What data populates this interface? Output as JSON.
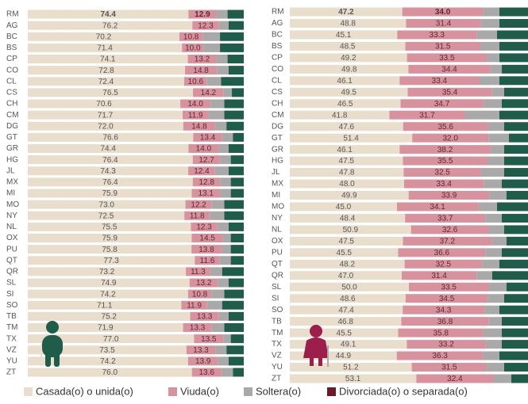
{
  "chart_data": [
    {
      "type": "bar",
      "orientation": "horizontal",
      "stacked": true,
      "xlim": [
        0,
        100
      ],
      "categories": [
        "RM",
        "AG",
        "BC",
        "BS",
        "CP",
        "CO",
        "CL",
        "CS",
        "CH",
        "CM",
        "DG",
        "GT",
        "GR",
        "HG",
        "JL",
        "MX",
        "MI",
        "MO",
        "NY",
        "NL",
        "OX",
        "PU",
        "QT",
        "QR",
        "SL",
        "SI",
        "SO",
        "TB",
        "TM",
        "TX",
        "VZ",
        "YU",
        "ZT"
      ],
      "series": [
        {
          "name": "Casada(o) o unida(o)",
          "color": "#e9ddcc",
          "values": [
            74.4,
            76.2,
            70.2,
            71.4,
            74.1,
            72.8,
            72.4,
            76.5,
            70.6,
            71.7,
            72.0,
            76.6,
            74.4,
            76.4,
            74.3,
            76.4,
            75.9,
            73.0,
            72.5,
            75.5,
            75.9,
            75.8,
            77.3,
            73.2,
            74.9,
            74.2,
            71.1,
            75.2,
            71.9,
            77.0,
            73.5,
            74.2,
            76.0
          ],
          "value_labels": [
            "74.4",
            "76.2",
            "70.2",
            "71.4",
            "74.1",
            "72.8",
            "72.4",
            "76.5",
            "70.6",
            "71.7",
            "72.0",
            "76.6",
            "74.4",
            "76.4",
            "74.3",
            "76.4",
            "75.9",
            "73.0",
            "72.5",
            "75.5",
            "75.9",
            "75.8",
            "77.3",
            "73.2",
            "74.9",
            "74.2",
            "71.1",
            "75.2",
            "71.9",
            "77.0",
            "73.5",
            "74.2",
            "76.0"
          ]
        },
        {
          "name": "Viuda(o)",
          "color": "#d8929e",
          "values": [
            12.9,
            12.3,
            10.8,
            10.0,
            13.2,
            14.8,
            10.6,
            14.2,
            14.0,
            11.9,
            14.8,
            13.4,
            14.0,
            12.7,
            12.4,
            12.8,
            13.1,
            12.2,
            11.8,
            12.3,
            14.5,
            13.8,
            11.6,
            11.3,
            13.2,
            10.8,
            11.9,
            13.3,
            13.3,
            13.5,
            13.3,
            13.9,
            13.6
          ],
          "value_labels": [
            "12.9",
            "12.3",
            "10.8",
            "10.0",
            "13.2",
            "14.8",
            "10.6",
            "14.2",
            "14.0",
            "11.9",
            "14.8",
            "13.4",
            "14.0",
            "12.7",
            "12.4",
            "12.8",
            "13.1",
            "12.2",
            "11.8",
            "12.3",
            "14.5",
            "13.8",
            "11.6",
            "11.3",
            "13.2",
            "10.8",
            "11.9",
            "13.3",
            "13.3",
            "13.5",
            "13.3",
            "13.9",
            "13.6"
          ]
        },
        {
          "name": "Soltera(o)",
          "color": "#a9a9a9",
          "values": [
            5.2,
            4.5,
            8,
            7.6,
            5.2,
            5.4,
            6.5,
            3.8,
            6.4,
            7.4,
            5.2,
            5.0,
            4.6,
            4.9,
            6.3,
            4.8,
            5,
            5.8,
            6.7,
            5.2,
            3.6,
            4.4,
            5.1,
            5.5,
            4.9,
            6,
            7,
            4.5,
            5.8,
            3.5,
            5.2,
            4.9,
            5.4
          ]
        },
        {
          "name": "Divorciada(o) o separada(o)",
          "color": "#1f5c4a",
          "legend_color": "#6b1a2c",
          "values": [
            7.5,
            7.0,
            11,
            11.0,
            7.5,
            7.0,
            10.5,
            5.5,
            9.0,
            9.0,
            8.0,
            5.0,
            7.0,
            6.0,
            7.0,
            6.0,
            6,
            9.0,
            9.0,
            7.0,
            6.0,
            6.0,
            6.0,
            10.0,
            7.0,
            9,
            10,
            7,
            9,
            6,
            8,
            7,
            5
          ]
        }
      ]
    },
    {
      "type": "bar",
      "orientation": "horizontal",
      "stacked": true,
      "xlim": [
        0,
        100
      ],
      "categories": [
        "RM",
        "AG",
        "BC",
        "BS",
        "CP",
        "CO",
        "CL",
        "CS",
        "CH",
        "CM",
        "DG",
        "GT",
        "GR",
        "HG",
        "JL",
        "MX",
        "MI",
        "MO",
        "NY",
        "NL",
        "OX",
        "PU",
        "QT",
        "QR",
        "SL",
        "SI",
        "SO",
        "TB",
        "TM",
        "TX",
        "VZ",
        "YU",
        "ZT"
      ],
      "series": [
        {
          "color": "#e9ddcc",
          "values": [
            47.2,
            48.8,
            45.1,
            48.5,
            49.2,
            49.8,
            46.1,
            49.5,
            46.5,
            41.8,
            47.6,
            51.4,
            46.1,
            47.5,
            47.8,
            48.0,
            49.9,
            45.0,
            48.4,
            50.9,
            47.5,
            45.5,
            48.2,
            47.0,
            50.0,
            48.6,
            47.4,
            46.8,
            45.5,
            49.1,
            44.9,
            51.2,
            53.1
          ],
          "value_labels": [
            "47.2",
            "48.8",
            "45.1",
            "48.5",
            "49.2",
            "49.8",
            "46.1",
            "49.5",
            "46.5",
            "41.8",
            "47.6",
            "51.4",
            "46.1",
            "47.5",
            "47.8",
            "48.0",
            "49.9",
            "45.0",
            "48.4",
            "50.9",
            "47.5",
            "45.5",
            "48.2",
            "47.0",
            "50.0",
            "48.6",
            "47.4",
            "46.8",
            "45.5",
            "49.1",
            "44.9",
            "51.2",
            "53.1"
          ]
        },
        {
          "color": "#d8929e",
          "values": [
            34.0,
            31.4,
            33.3,
            31.5,
            33.5,
            34.4,
            33.4,
            35.4,
            34.7,
            31.7,
            35.6,
            32.0,
            38.2,
            35.5,
            32.5,
            33.4,
            33.9,
            34.1,
            33.7,
            32.6,
            37.2,
            36.6,
            32.5,
            31.4,
            33.5,
            34.5,
            34.3,
            36.8,
            35.8,
            33.2,
            36.3,
            31.5,
            32.4
          ],
          "value_labels": [
            "34.0",
            "31.4",
            "33.3",
            "31.5",
            "33.5",
            "34.4",
            "33.4",
            "35.4",
            "34.7",
            "31.7",
            "35.6",
            "32.0",
            "38.2",
            "35.5",
            "32.5",
            "33.4",
            "33.9",
            "34.1",
            "33.7",
            "32.6",
            "37.2",
            "36.6",
            "32.5",
            "31.4",
            "33.5",
            "34.5",
            "34.3",
            "36.8",
            "35.8",
            "33.2",
            "36.3",
            "31.5",
            "32.4"
          ]
        },
        {
          "color": "#a9a9a9",
          "values": [
            6.8,
            7.8,
            8.6,
            8,
            5.3,
            4.8,
            8.5,
            5.1,
            7.8,
            14.5,
            6.8,
            8.6,
            5.7,
            7,
            9.7,
            7.6,
            7.2,
            7.9,
            6.9,
            6.5,
            6.3,
            6.9,
            7.3,
            6.6,
            7.5,
            6.9,
            6.3,
            5.4,
            7.7,
            6.7,
            6.8,
            7.3,
            7.5
          ]
        },
        {
          "color": "#1f5c4a",
          "values": [
            12,
            12,
            13,
            12,
            12,
            11,
            12,
            10,
            11,
            12,
            10,
            8,
            10,
            10,
            10,
            11,
            9,
            13,
            11,
            10,
            9,
            11,
            12,
            15,
            9,
            10,
            12,
            11,
            11,
            11,
            12,
            10,
            7
          ]
        }
      ]
    }
  ]
}
